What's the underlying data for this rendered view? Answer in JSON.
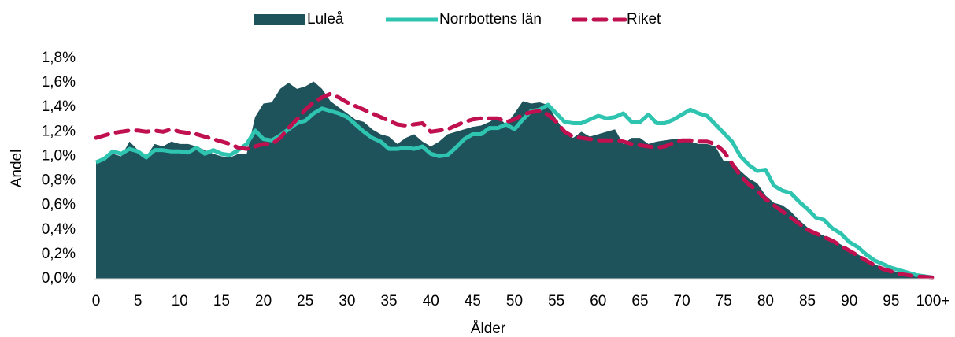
{
  "chart_data": {
    "type": "line",
    "x_label": "Ålder",
    "y_label": "Andel",
    "categories": [
      "0",
      null,
      null,
      null,
      null,
      "5",
      null,
      null,
      null,
      null,
      "10",
      null,
      null,
      null,
      null,
      "15",
      null,
      null,
      null,
      null,
      "20",
      null,
      null,
      null,
      null,
      "25",
      null,
      null,
      null,
      null,
      "30",
      null,
      null,
      null,
      null,
      "35",
      null,
      null,
      null,
      null,
      "40",
      null,
      null,
      null,
      null,
      "45",
      null,
      null,
      null,
      null,
      "50",
      null,
      null,
      null,
      null,
      "55",
      null,
      null,
      null,
      null,
      "60",
      null,
      null,
      null,
      null,
      "65",
      null,
      null,
      null,
      null,
      "70",
      null,
      null,
      null,
      null,
      "75",
      null,
      null,
      null,
      null,
      "80",
      null,
      null,
      null,
      null,
      "85",
      null,
      null,
      null,
      null,
      "90",
      null,
      null,
      null,
      null,
      "95",
      null,
      null,
      null,
      null,
      "100+"
    ],
    "ylim": [
      0,
      1.8
    ],
    "yticks": [
      {
        "value": 0,
        "label": "0,0%"
      },
      {
        "value": 0.2,
        "label": "0,2%"
      },
      {
        "value": 0.4,
        "label": "0,4%"
      },
      {
        "value": 0.6,
        "label": "0,6%"
      },
      {
        "value": 0.8,
        "label": "0,8%"
      },
      {
        "value": 1.0,
        "label": "1,0%"
      },
      {
        "value": 1.2,
        "label": "1,2%"
      },
      {
        "value": 1.4,
        "label": "1,4%"
      },
      {
        "value": 1.6,
        "label": "1,6%"
      },
      {
        "value": 1.8,
        "label": "1,8%"
      }
    ],
    "legend": "top",
    "series": [
      {
        "name": "Luleå",
        "type": "area",
        "color": "#1f535c",
        "values": [
          0.95,
          0.98,
          1.02,
          1.0,
          1.12,
          1.05,
          1.0,
          1.1,
          1.08,
          1.12,
          1.1,
          1.1,
          1.08,
          1.05,
          1.02,
          1.0,
          0.99,
          1.02,
          1.02,
          1.32,
          1.43,
          1.44,
          1.55,
          1.6,
          1.55,
          1.57,
          1.61,
          1.55,
          1.45,
          1.4,
          1.35,
          1.3,
          1.28,
          1.22,
          1.18,
          1.16,
          1.1,
          1.15,
          1.18,
          1.12,
          1.08,
          1.12,
          1.18,
          1.2,
          1.22,
          1.24,
          1.25,
          1.28,
          1.32,
          1.26,
          1.35,
          1.45,
          1.43,
          1.44,
          1.42,
          1.3,
          1.2,
          1.15,
          1.2,
          1.16,
          1.18,
          1.2,
          1.22,
          1.1,
          1.15,
          1.15,
          1.1,
          1.12,
          1.13,
          1.14,
          1.14,
          1.12,
          1.1,
          1.1,
          1.08,
          0.96,
          0.96,
          0.88,
          0.82,
          0.78,
          0.68,
          0.62,
          0.6,
          0.55,
          0.48,
          0.42,
          0.38,
          0.35,
          0.32,
          0.28,
          0.24,
          0.2,
          0.16,
          0.12,
          0.09,
          0.07,
          0.05,
          0.04,
          0.03,
          0.02,
          0.01
        ]
      },
      {
        "name": "Norrbottens län",
        "type": "line",
        "color": "#2ec4b0",
        "values": [
          0.95,
          0.98,
          1.04,
          1.02,
          1.06,
          1.04,
          0.99,
          1.05,
          1.05,
          1.04,
          1.04,
          1.03,
          1.07,
          1.02,
          1.05,
          1.02,
          1.01,
          1.05,
          1.1,
          1.21,
          1.14,
          1.13,
          1.17,
          1.22,
          1.27,
          1.29,
          1.35,
          1.39,
          1.37,
          1.35,
          1.32,
          1.26,
          1.2,
          1.15,
          1.12,
          1.06,
          1.06,
          1.07,
          1.06,
          1.08,
          1.02,
          1.0,
          1.01,
          1.07,
          1.14,
          1.18,
          1.18,
          1.23,
          1.23,
          1.26,
          1.22,
          1.3,
          1.37,
          1.38,
          1.42,
          1.35,
          1.28,
          1.27,
          1.27,
          1.3,
          1.33,
          1.31,
          1.32,
          1.35,
          1.28,
          1.28,
          1.34,
          1.27,
          1.27,
          1.3,
          1.34,
          1.38,
          1.35,
          1.33,
          1.26,
          1.19,
          1.12,
          1.0,
          0.93,
          0.88,
          0.89,
          0.76,
          0.72,
          0.7,
          0.63,
          0.57,
          0.5,
          0.48,
          0.41,
          0.37,
          0.3,
          0.26,
          0.2,
          0.15,
          0.12,
          0.09,
          0.07,
          0.05,
          0.03,
          0.02,
          0.01
        ]
      },
      {
        "name": "Riket",
        "type": "line",
        "dashed": true,
        "color": "#c0104f",
        "values": [
          1.15,
          1.17,
          1.19,
          1.2,
          1.21,
          1.21,
          1.2,
          1.21,
          1.2,
          1.22,
          1.2,
          1.19,
          1.18,
          1.16,
          1.14,
          1.12,
          1.1,
          1.07,
          1.06,
          1.08,
          1.1,
          1.1,
          1.15,
          1.23,
          1.3,
          1.38,
          1.44,
          1.48,
          1.51,
          1.48,
          1.44,
          1.41,
          1.38,
          1.35,
          1.32,
          1.29,
          1.26,
          1.25,
          1.26,
          1.27,
          1.2,
          1.21,
          1.22,
          1.25,
          1.28,
          1.3,
          1.31,
          1.31,
          1.31,
          1.28,
          1.3,
          1.34,
          1.36,
          1.37,
          1.34,
          1.28,
          1.2,
          1.16,
          1.15,
          1.14,
          1.13,
          1.13,
          1.13,
          1.12,
          1.1,
          1.09,
          1.08,
          1.07,
          1.08,
          1.11,
          1.13,
          1.13,
          1.12,
          1.12,
          1.1,
          1.04,
          0.94,
          0.84,
          0.77,
          0.72,
          0.65,
          0.6,
          0.55,
          0.5,
          0.45,
          0.4,
          0.37,
          0.34,
          0.31,
          0.27,
          0.23,
          0.19,
          0.15,
          0.11,
          0.08,
          0.06,
          0.04,
          0.03,
          0.02,
          0.015,
          0.01
        ]
      }
    ]
  }
}
